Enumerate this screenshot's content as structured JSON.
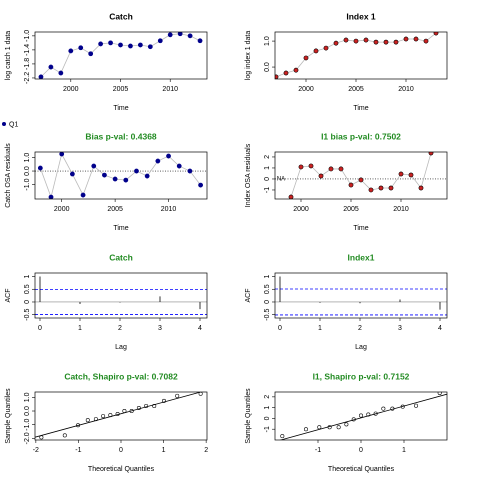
{
  "chart_data": [
    {
      "type": "line",
      "title": "Catch",
      "title_color": "#000000",
      "xlabel": "Time",
      "ylabel": "log catch 1 data",
      "x": [
        1997,
        1998,
        1999,
        2000,
        2001,
        2002,
        2003,
        2004,
        2005,
        2006,
        2007,
        2008,
        2009,
        2010,
        2011,
        2012,
        2013
      ],
      "series": [
        {
          "color": "#00008b",
          "values": [
            -2.17,
            -1.89,
            -2.06,
            -1.43,
            -1.34,
            -1.51,
            -1.23,
            -1.2,
            -1.26,
            -1.29,
            -1.26,
            -1.31,
            -1.14,
            -0.97,
            -0.94,
            -1.0,
            -1.14
          ]
        }
      ],
      "xlim": [
        1996.4,
        2013.7
      ],
      "ylim": [
        -2.23,
        -0.89
      ],
      "xticks": [
        2000,
        2005,
        2010
      ],
      "yticks": [
        {
          "value": -2.2,
          "label": "-2.2"
        },
        {
          "value": -1.8,
          "label": "-1.8"
        },
        {
          "value": -1.4,
          "label": "-1.4"
        },
        {
          "value": -1,
          "label": "-1.0"
        }
      ]
    },
    {
      "type": "line",
      "title": "Index 1",
      "title_color": "#000000",
      "xlabel": "Time",
      "ylabel": "log index 1 data",
      "x": [
        1997,
        1998,
        1999,
        2000,
        2001,
        2002,
        2003,
        2004,
        2005,
        2006,
        2007,
        2008,
        2009,
        2010,
        2011,
        2012,
        2013
      ],
      "series": [
        {
          "color": "#cc2222",
          "edgecolor": "#000000",
          "values": [
            -0.38,
            -0.23,
            -0.12,
            0.35,
            0.62,
            0.73,
            0.92,
            1.04,
            1.0,
            1.04,
            0.96,
            0.96,
            0.96,
            1.08,
            1.08,
            1.0,
            1.31
          ]
        }
      ],
      "xlim": [
        1996.9,
        2014.1
      ],
      "ylim": [
        -0.46,
        1.35
      ],
      "xticks": [
        2000,
        2005,
        2010
      ],
      "yticks": [
        {
          "value": 0,
          "label": "0.0"
        },
        {
          "value": 1,
          "label": "1.0"
        }
      ]
    },
    {
      "type": "line",
      "title": "Bias p-val: 0.4368",
      "title_color": "#228b22",
      "xlabel": "Time",
      "ylabel": "Catch OSA residuals",
      "x": [
        1998,
        1999,
        2000,
        2001,
        2002,
        2003,
        2004,
        2005,
        2006,
        2007,
        2008,
        2009,
        2010,
        2011,
        2012,
        2013
      ],
      "series": [
        {
          "name": "Q1",
          "color": "#00008b",
          "values": [
            0.22,
            -1.93,
            1.26,
            -0.22,
            -1.78,
            0.37,
            -0.3,
            -0.59,
            -0.67,
            0,
            -0.37,
            0.74,
            1.11,
            0.37,
            0,
            -1.04
          ]
        }
      ],
      "hline": 0,
      "xlim": [
        1997.5,
        2013.6
      ],
      "ylim": [
        -2.07,
        1.41
      ],
      "xticks": [
        2000,
        2005,
        2010
      ],
      "yticks": [
        {
          "value": -1,
          "label": "-1.0"
        },
        {
          "value": 0,
          "label": "0.0"
        },
        {
          "value": 1,
          "label": "1.0"
        }
      ]
    },
    {
      "type": "line",
      "title": "I1 bias p-val: 0.7502",
      "title_color": "#228b22",
      "xlabel": "Time",
      "ylabel": "Index OSA residuals",
      "x": [
        1998,
        1999,
        2000,
        2001,
        2002,
        2003,
        2004,
        2005,
        2006,
        2007,
        2008,
        2009,
        2010,
        2011,
        2012,
        2013
      ],
      "series": [
        {
          "color": "#cc2222",
          "edgecolor": "#000000",
          "values": [
            null,
            -1.64,
            1.09,
            1.18,
            0.27,
            0.91,
            0.91,
            -0.55,
            -0.09,
            -1.0,
            -0.82,
            -0.82,
            0.45,
            0.36,
            -0.82,
            2.36
          ]
        }
      ],
      "annotation": "NA",
      "hline": 0,
      "xlim": [
        1997.4,
        2014.6
      ],
      "ylim": [
        -1.82,
        2.45
      ],
      "xticks": [
        2000,
        2005,
        2010
      ],
      "yticks": [
        -1,
        0,
        1,
        2
      ]
    },
    {
      "type": "bar",
      "title": "Catch",
      "title_color": "#228b22",
      "xlabel": "Lag",
      "ylabel": "ACF",
      "x": [
        0,
        1,
        2,
        3,
        4
      ],
      "series": [
        {
          "color": "#000000",
          "values": [
            1,
            -0.08,
            -0.02,
            0.22,
            -0.28
          ]
        }
      ],
      "hline": 0,
      "conf_bounds": [
        -0.49,
        0.49
      ],
      "conf_color": "#0000ff",
      "xlim": [
        -0.125,
        4.175
      ],
      "ylim": [
        -0.63,
        1.14
      ],
      "xticks": [
        0,
        1,
        2,
        3,
        4
      ],
      "yticks": [
        -0.5,
        0,
        0.5,
        1
      ]
    },
    {
      "type": "bar",
      "title": "Index1",
      "title_color": "#228b22",
      "xlabel": "Lag",
      "ylabel": "ACF",
      "x": [
        0,
        1,
        2,
        3,
        4
      ],
      "series": [
        {
          "color": "#000000",
          "values": [
            1,
            -0.03,
            -0.05,
            0.1,
            -0.3
          ]
        }
      ],
      "hline": 0,
      "conf_bounds": [
        -0.51,
        0.51
      ],
      "conf_color": "#0000ff",
      "xlim": [
        -0.125,
        4.175
      ],
      "ylim": [
        -0.63,
        1.14
      ],
      "xticks": [
        0,
        1,
        2,
        3,
        4
      ],
      "yticks": [
        -0.5,
        0,
        0.5,
        1
      ]
    },
    {
      "type": "scatter",
      "title": "Catch, Shapiro p-val: 0.7082",
      "title_color": "#228b22",
      "xlabel": "Theoretical Quantiles",
      "ylabel": "Sample Quantiles",
      "x": [
        -1.87,
        -1.32,
        -1.01,
        -0.78,
        -0.59,
        -0.42,
        -0.25,
        -0.08,
        0.08,
        0.25,
        0.42,
        0.59,
        0.78,
        1.01,
        1.32,
        1.87
      ],
      "series": [
        {
          "color": "#000000",
          "values": [
            -1.93,
            -1.78,
            -1.04,
            -0.67,
            -0.59,
            -0.37,
            -0.3,
            -0.22,
            0,
            0,
            0.22,
            0.37,
            0.37,
            0.74,
            1.11,
            1.26
          ]
        }
      ],
      "qq_line": {
        "intercept": -0.2,
        "slope": 0.85
      },
      "xlim": [
        -2.02,
        2.02
      ],
      "ylim": [
        -2.12,
        1.39
      ],
      "xticks": [
        -2,
        -1,
        0,
        1,
        2
      ],
      "yticks": [
        {
          "value": -2,
          "label": "-2.0"
        },
        {
          "value": -1,
          "label": "-1.0"
        },
        {
          "value": 0,
          "label": "0.0"
        },
        {
          "value": 1,
          "label": "1.0"
        }
      ]
    },
    {
      "type": "scatter",
      "title": "I1, Shapiro p-val: 0.7152",
      "title_color": "#228b22",
      "xlabel": "Theoretical Quantiles",
      "ylabel": "Sample Quantiles",
      "x": [
        -1.83,
        -1.28,
        -0.97,
        -0.73,
        -0.52,
        -0.34,
        -0.17,
        0,
        0.17,
        0.34,
        0.52,
        0.73,
        0.97,
        1.28,
        1.83
      ],
      "series": [
        {
          "color": "#000000",
          "values": [
            -1.64,
            -1.0,
            -0.82,
            -0.82,
            -0.82,
            -0.55,
            -0.09,
            0.27,
            0.36,
            0.45,
            0.91,
            0.91,
            1.09,
            1.18,
            2.36
          ]
        }
      ],
      "qq_line": {
        "intercept": 0.05,
        "slope": 1.1
      },
      "xlim": [
        -2.0,
        2.0
      ],
      "ylim": [
        -2.0,
        2.45
      ],
      "xticks": [
        -1,
        0,
        1
      ],
      "yticks": [
        -1,
        0,
        1,
        2
      ]
    }
  ]
}
